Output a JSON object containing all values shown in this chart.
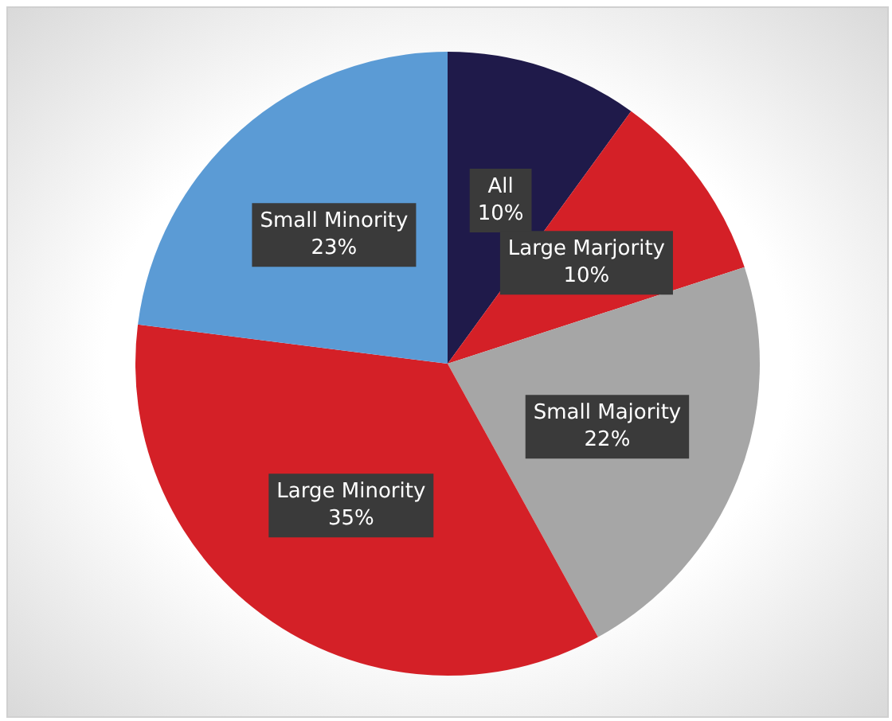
{
  "chart_data": {
    "type": "pie",
    "categories": [
      "All",
      "Large Marjority",
      "Small Majority",
      "Large Minority",
      "Small Minority"
    ],
    "values": [
      10,
      10,
      22,
      35,
      23
    ],
    "value_labels": [
      "10%",
      "10%",
      "22%",
      "35%",
      "23%"
    ],
    "colors": [
      "#1f1a4a",
      "#d42027",
      "#a6a6a6",
      "#d42027",
      "#5b9bd5"
    ],
    "legend": false
  }
}
